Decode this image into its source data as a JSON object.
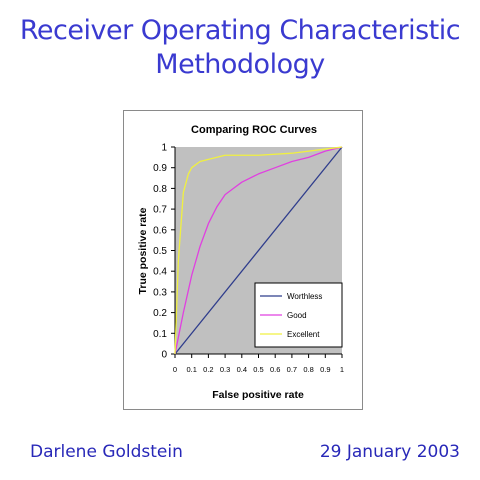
{
  "slide": {
    "title_line1": "Receiver Operating Characteristic",
    "title_line2": "Methodology",
    "author": "Darlene Goldstein",
    "date": "29 January 2003"
  },
  "colors": {
    "title": "#3a3ad0",
    "footer": "#2828b8",
    "plot_background": "#c0c0c0",
    "worthless": "#2f3d8c",
    "good": "#e040e0",
    "excellent": "#f0f040"
  },
  "chart_data": {
    "type": "line",
    "title": "Comparing ROC Curves",
    "xlabel": "False positive rate",
    "ylabel": "True positive rate",
    "xlim": [
      0,
      1
    ],
    "ylim": [
      0,
      1
    ],
    "xticks": [
      0,
      0.1,
      0.2,
      0.3,
      0.4,
      0.5,
      0.6,
      0.7,
      0.8,
      0.9,
      1
    ],
    "xtick_labels": [
      "0",
      "0.1",
      "0.2",
      "0.3",
      "0.4",
      "0.5",
      "0.6",
      "0.7",
      "0.8",
      "0.9",
      "1"
    ],
    "yticks": [
      0,
      0.1,
      0.2,
      0.3,
      0.4,
      0.5,
      0.6,
      0.7,
      0.8,
      0.9,
      1
    ],
    "ytick_labels": [
      "0",
      "0.1",
      "0.2",
      "0.3",
      "0.4",
      "0.5",
      "0.6",
      "0.7",
      "0.8",
      "0.9",
      "1"
    ],
    "grid": false,
    "legend_position": "bottom-right inside plot",
    "series": [
      {
        "name": "Worthless",
        "color": "#2f3d8c",
        "x": [
          0,
          1
        ],
        "y": [
          0,
          1
        ]
      },
      {
        "name": "Good",
        "color": "#e040e0",
        "x": [
          0,
          0.05,
          0.1,
          0.15,
          0.2,
          0.25,
          0.3,
          0.35,
          0.4,
          0.5,
          0.6,
          0.7,
          0.8,
          0.9,
          1
        ],
        "y": [
          0,
          0.2,
          0.38,
          0.52,
          0.63,
          0.71,
          0.77,
          0.8,
          0.83,
          0.87,
          0.9,
          0.93,
          0.95,
          0.98,
          1
        ]
      },
      {
        "name": "Excellent",
        "color": "#f0f040",
        "x": [
          0,
          0.02,
          0.05,
          0.08,
          0.1,
          0.15,
          0.2,
          0.3,
          0.5,
          0.7,
          0.9,
          1
        ],
        "y": [
          0,
          0.45,
          0.78,
          0.87,
          0.9,
          0.93,
          0.94,
          0.96,
          0.96,
          0.97,
          0.99,
          1
        ]
      }
    ]
  }
}
